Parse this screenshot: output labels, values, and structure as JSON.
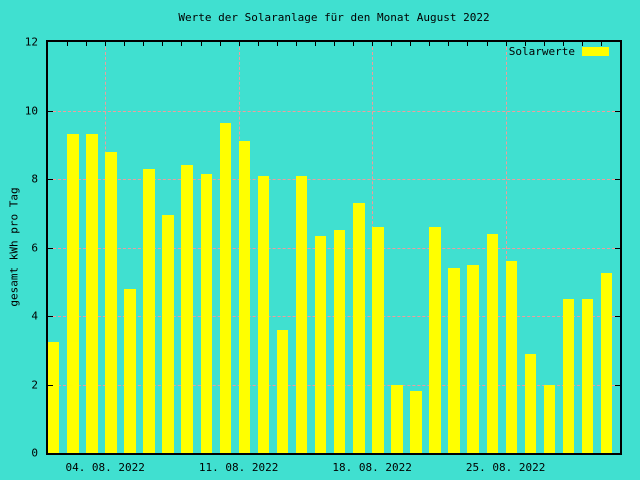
{
  "title": "Werte der Solaranlage für den Monat August 2022",
  "legend": {
    "label": "Solarwerte"
  },
  "y_axis": {
    "label": "gesamt kWh pro Tag"
  },
  "chart_data": {
    "type": "bar",
    "title": "Werte der Solaranlage für den Monat August 2022",
    "xlabel": "",
    "ylabel": "gesamt kWh pro Tag",
    "ylim": [
      0,
      12
    ],
    "yticks": [
      0,
      2,
      4,
      6,
      8,
      10,
      12
    ],
    "grid": true,
    "legend_position": "top-right-inside",
    "x": [
      1,
      2,
      3,
      4,
      5,
      6,
      7,
      8,
      9,
      10,
      11,
      12,
      13,
      14,
      15,
      16,
      17,
      18,
      19,
      20,
      21,
      22,
      23,
      24,
      25,
      26,
      27,
      28,
      29,
      30
    ],
    "series": [
      {
        "name": "Solarwerte",
        "values": [
          3.25,
          9.3,
          9.3,
          8.8,
          4.8,
          8.3,
          6.95,
          8.4,
          8.15,
          9.65,
          9.1,
          8.1,
          3.6,
          8.1,
          6.35,
          6.5,
          7.3,
          6.6,
          2.0,
          1.8,
          6.6,
          5.4,
          5.5,
          6.4,
          5.6,
          2.9,
          2.0,
          4.5,
          4.5,
          5.25
        ]
      }
    ],
    "xticks": [
      {
        "label": "04. 08. 2022",
        "index": 3
      },
      {
        "label": "11. 08. 2022",
        "index": 10
      },
      {
        "label": "18. 08. 2022",
        "index": 17
      },
      {
        "label": "25. 08. 2022",
        "index": 24
      }
    ],
    "colors": {
      "background": "#40E0D0",
      "bar": "#FFFF00",
      "grid": "#F09C9C",
      "text": "#000000",
      "border": "#000000"
    }
  }
}
